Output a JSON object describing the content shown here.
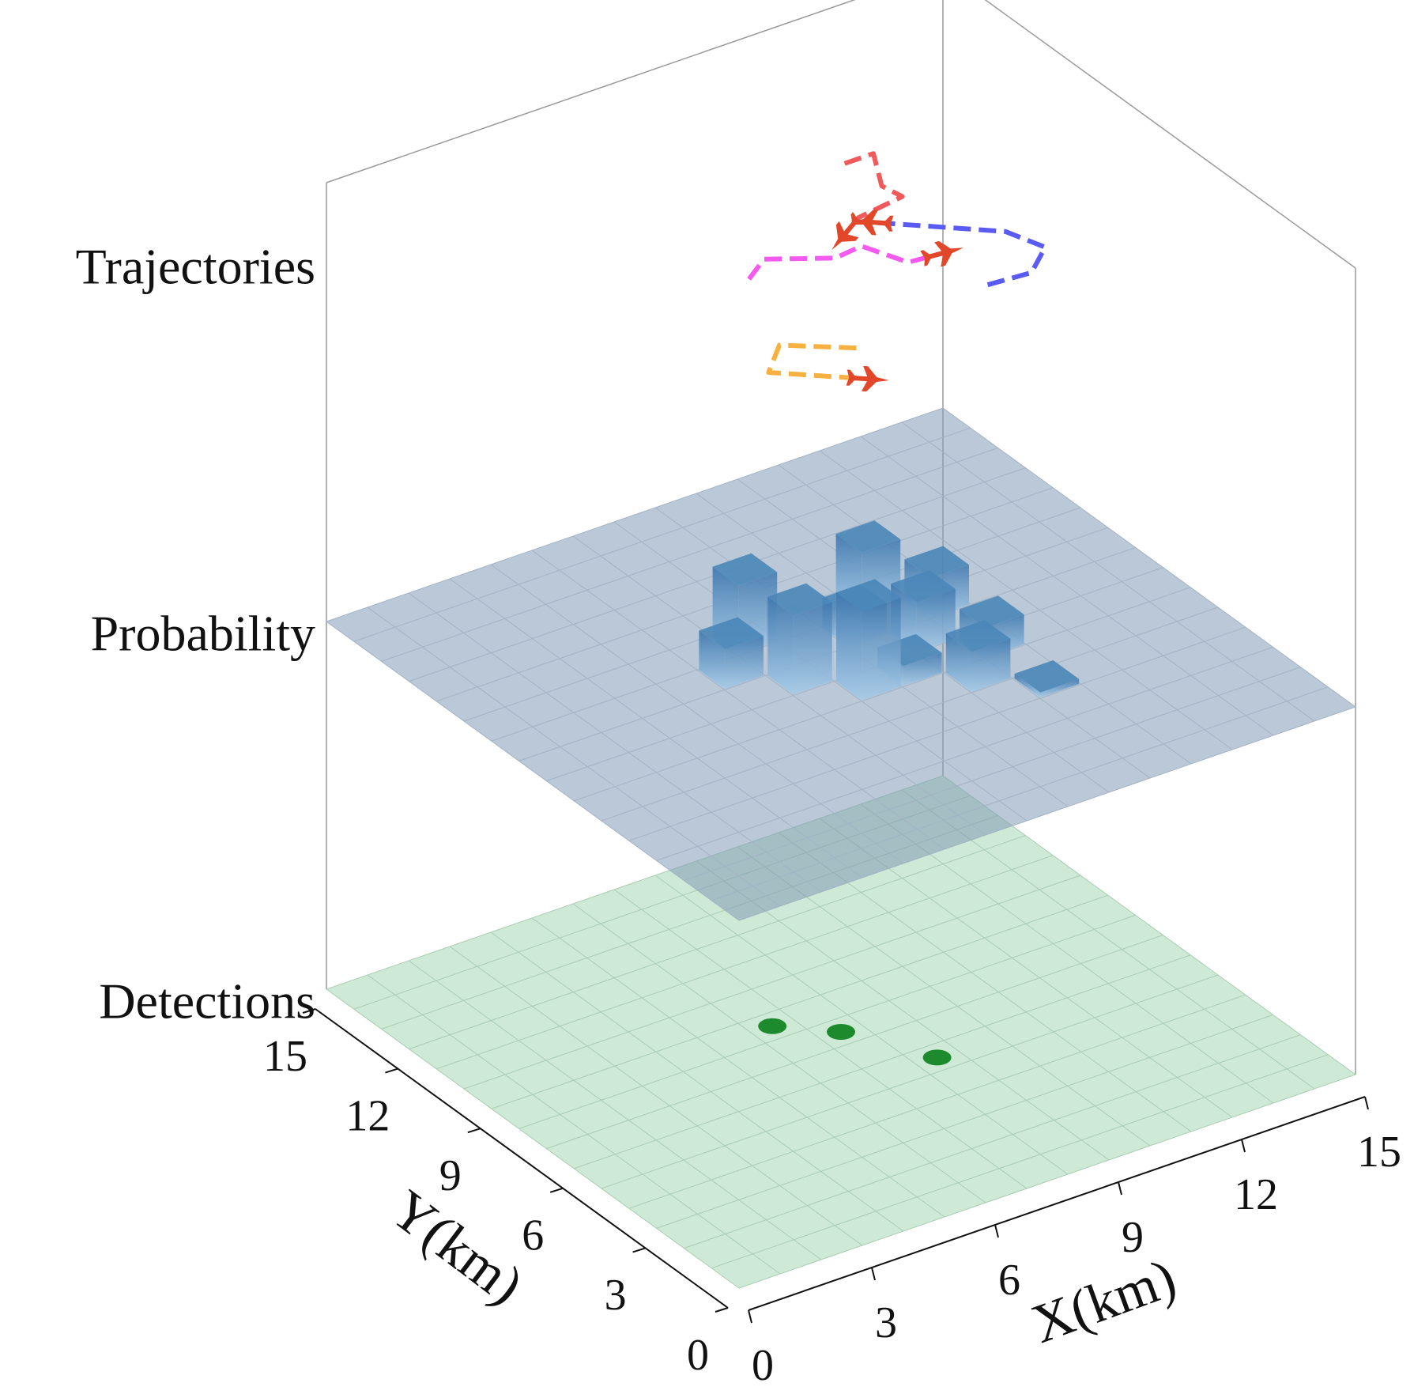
{
  "chart_data": {
    "type": "layered-3d",
    "layers": [
      "Detections",
      "Probability",
      "Trajectories"
    ],
    "xlabel": "X(km)",
    "ylabel": "Y(km)",
    "xlim": [
      0,
      15
    ],
    "ylim": [
      0,
      15
    ],
    "xticks": [
      0,
      3,
      6,
      9,
      12,
      15
    ],
    "yticks": [
      0,
      3,
      6,
      9,
      12,
      15
    ],
    "grid": true,
    "detections": {
      "color": "#1e8a2e",
      "x": [
        6.5,
        7.5,
        8.5
      ],
      "y": [
        8.5,
        7.5,
        5.5
      ]
    },
    "probability": {
      "color": "#4a86b8",
      "x": [
        9.5,
        10.5,
        6.5,
        9.5,
        8.5,
        10.5,
        5.5,
        6.5,
        8.5,
        7.5,
        9.5,
        10.5
      ],
      "y": [
        9.5,
        8.5,
        9.5,
        7.5,
        8.5,
        6.5,
        8.5,
        7.5,
        6.5,
        6.5,
        5.5,
        4.5
      ],
      "values": [
        0.6,
        0.4,
        0.7,
        0.5,
        0.3,
        0.3,
        0.4,
        0.8,
        0.2,
        0.9,
        0.4,
        0.05
      ]
    },
    "trajectories": [
      {
        "color": "#f05a5a",
        "x": [
          10.6,
          11.3,
          10.7,
          10.8,
          9.6,
          9.0
        ],
        "y": [
          12.0,
          12.0,
          10.8,
          10.2,
          10.0,
          9.6
        ]
      },
      {
        "color": "#5a5af5",
        "x": [
          10.2,
          11.2,
          12.0,
          11.7,
          9.7
        ],
        "y": [
          6.2,
          6.1,
          6.8,
          7.8,
          9.7
        ]
      },
      {
        "color": "#f55af0",
        "x": [
          6.4,
          7.1,
          8.3,
          9.0,
          9.4,
          10.2
        ],
        "y": [
          9.2,
          9.7,
          8.9,
          9.0,
          7.9,
          7.8
        ]
      },
      {
        "color": "#f8b040",
        "x": [
          6.6,
          5.4,
          4.6,
          6.1
        ],
        "y": [
          5.6,
          6.6,
          5.8,
          4.4
        ]
      }
    ]
  }
}
